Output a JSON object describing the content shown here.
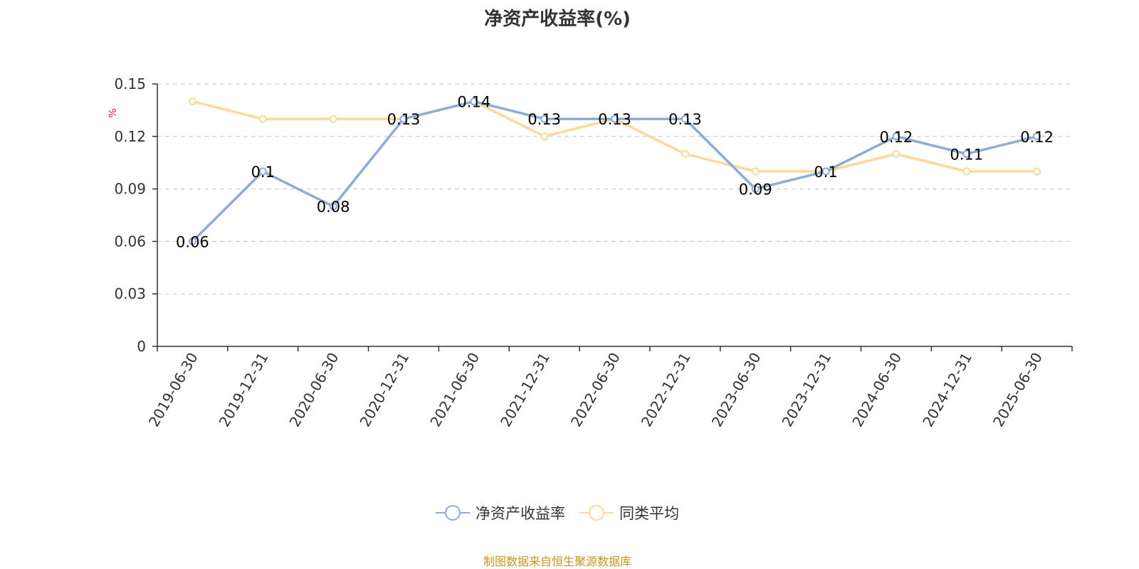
{
  "chart_data": {
    "type": "line",
    "title": "净资产收益率(%)",
    "ylabel": "%",
    "xlabel": "",
    "ylim": [
      0,
      0.15
    ],
    "yticks": [
      "0",
      "0.03",
      "0.06",
      "0.09",
      "0.12",
      "0.15"
    ],
    "grid": "horizontal-dashed",
    "legend_position": "bottom-center",
    "categories": [
      "2019-06-30",
      "2019-12-31",
      "2020-06-30",
      "2020-12-31",
      "2021-06-30",
      "2021-12-31",
      "2022-06-30",
      "2022-12-31",
      "2023-06-30",
      "2023-12-31",
      "2024-06-30",
      "2024-12-31",
      "2025-06-30"
    ],
    "series": [
      {
        "name": "净资产收益率",
        "color": "#8eacd8",
        "values": [
          0.06,
          0.1,
          0.08,
          0.13,
          0.14,
          0.13,
          0.13,
          0.13,
          0.09,
          0.1,
          0.12,
          0.11,
          0.12
        ],
        "labels": [
          "0.06",
          "0.1",
          "0.08",
          "0.13",
          "0.14",
          "0.13",
          "0.13",
          "0.13",
          "0.09",
          "0.1",
          "0.12",
          "0.11",
          "0.12"
        ]
      },
      {
        "name": "同类平均",
        "color": "#fdd898",
        "values": [
          0.14,
          0.13,
          0.13,
          0.13,
          0.14,
          0.12,
          0.13,
          0.11,
          0.1,
          0.1,
          0.11,
          0.1,
          0.1
        ]
      }
    ]
  },
  "source_note": "制图数据来自恒生聚源数据库",
  "colors": {
    "title": "#333333",
    "axis": "#333333",
    "grid": "#cccccc",
    "unit": "#e02020",
    "source": "#c8961e"
  }
}
